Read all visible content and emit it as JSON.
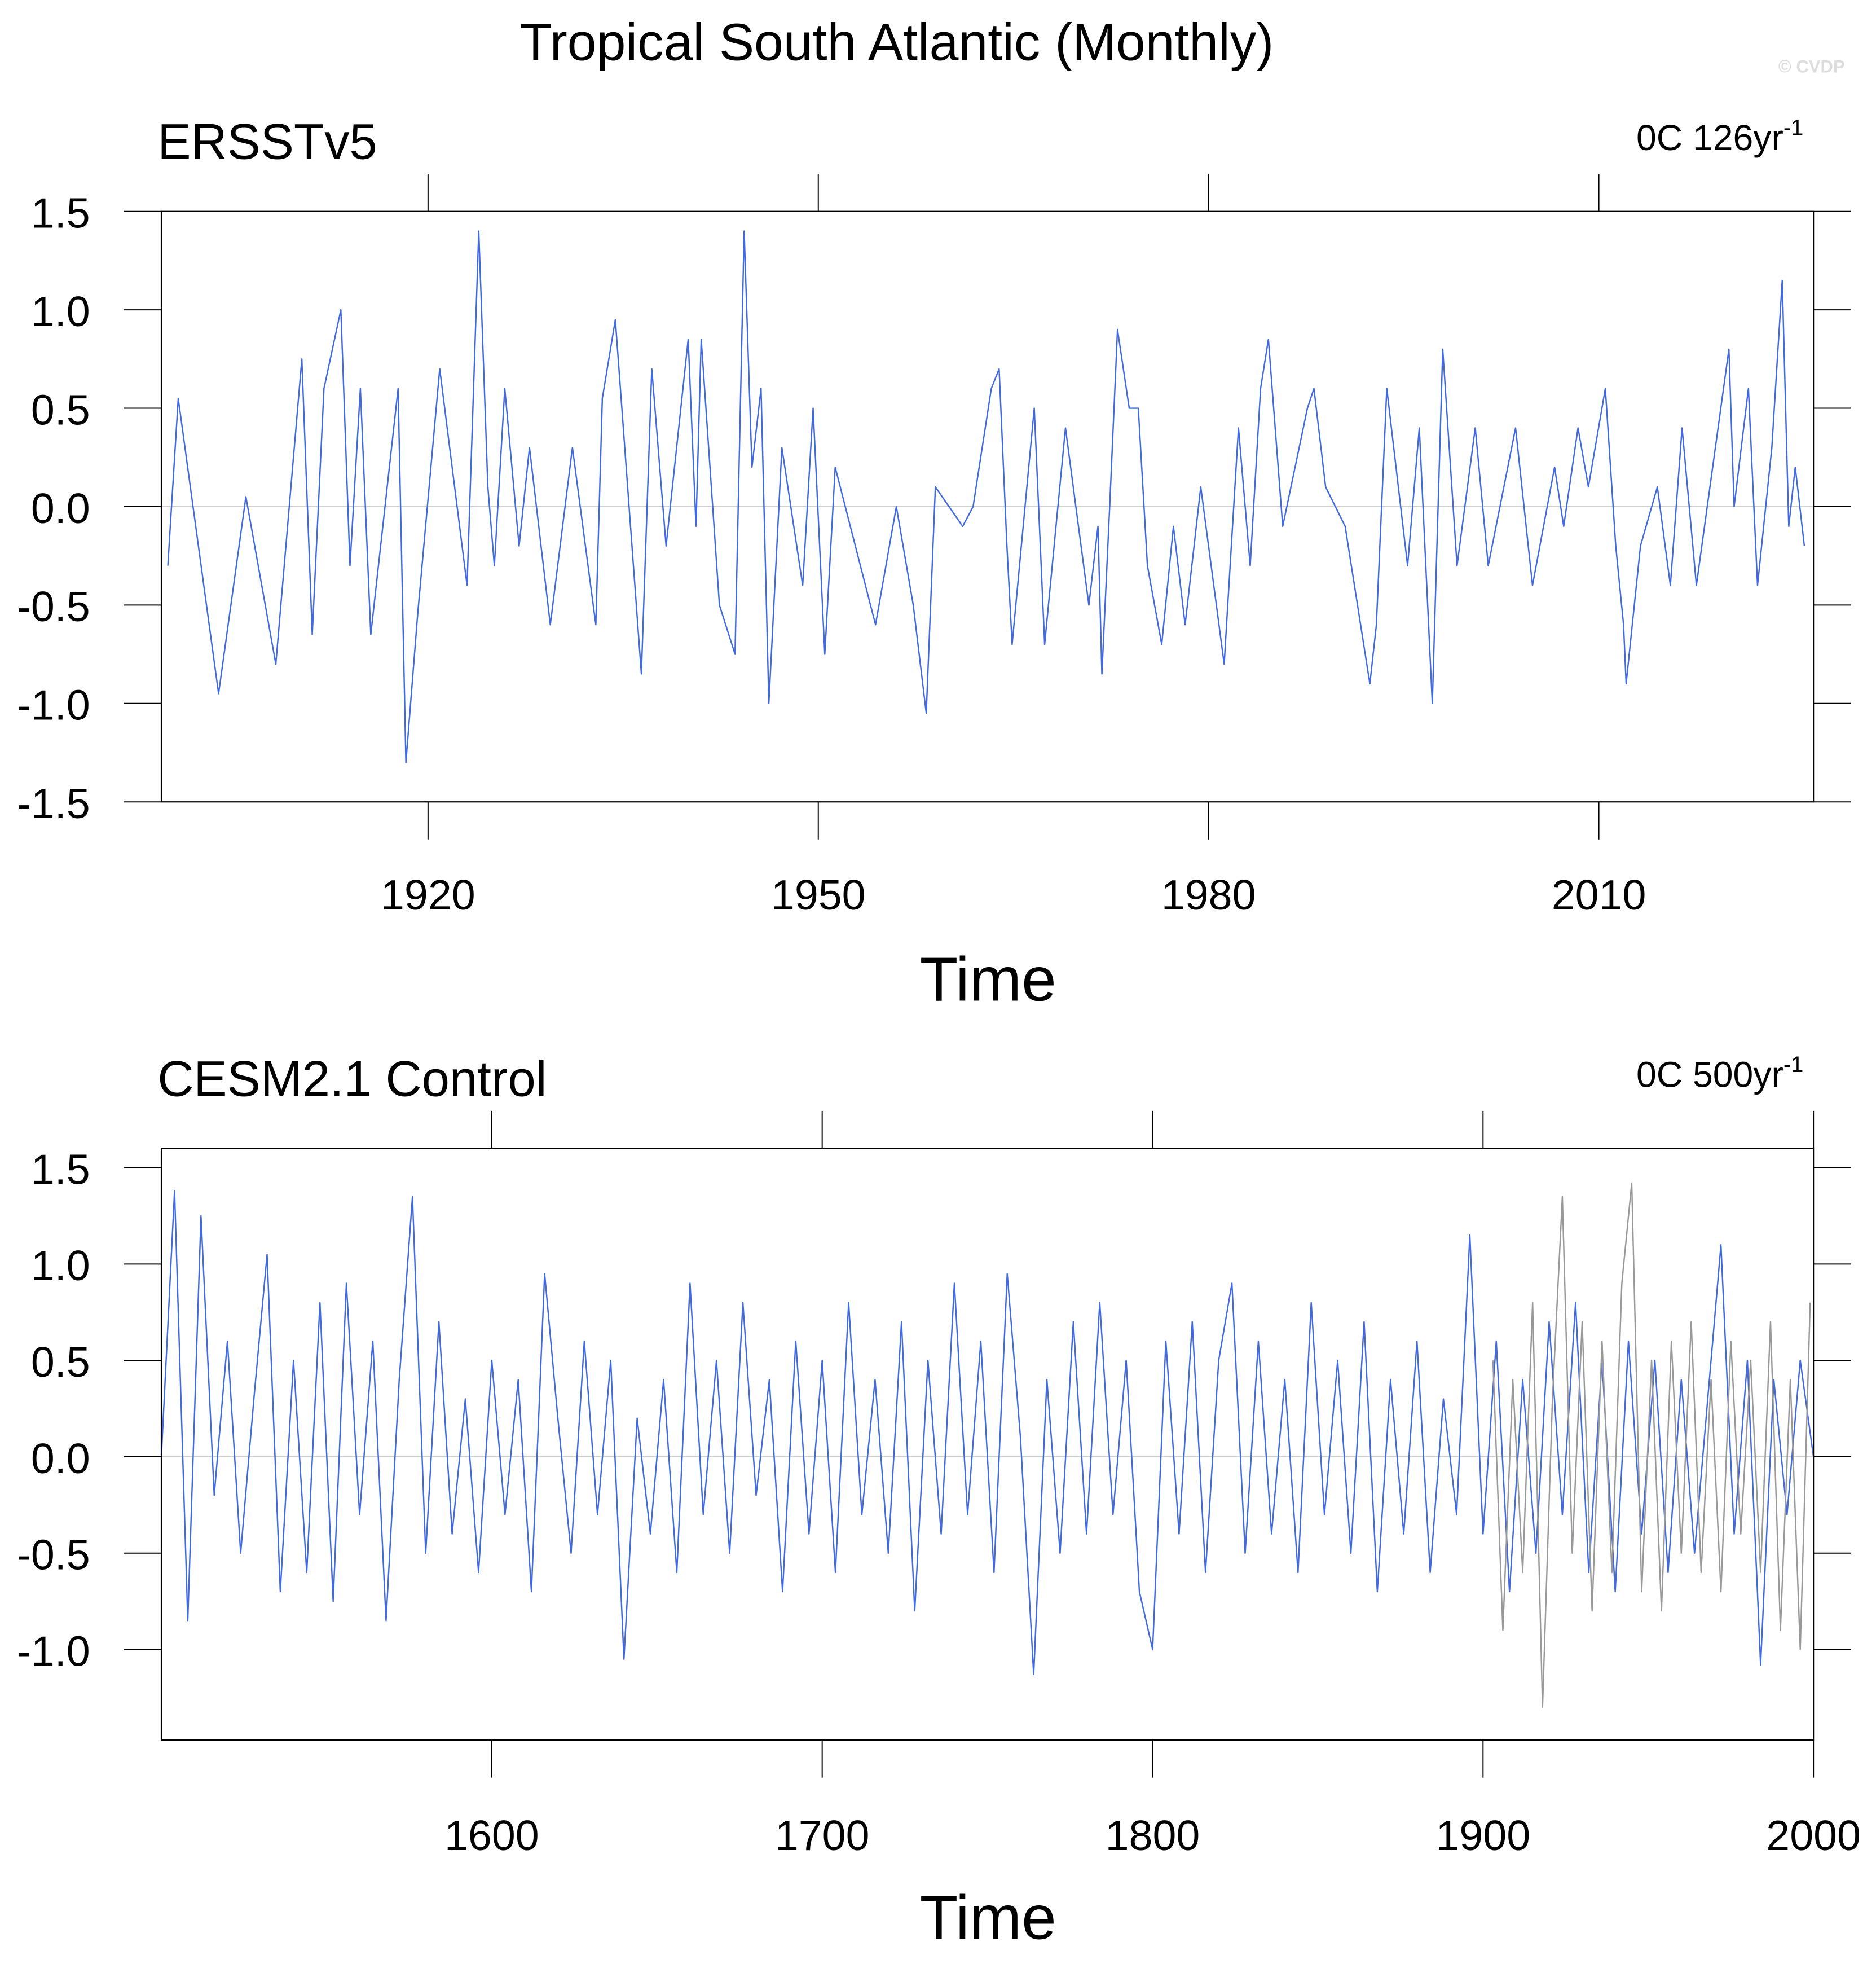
{
  "title": "Tropical South Atlantic (Monthly)",
  "credit": "© CVDP",
  "chart_data": [
    {
      "type": "line",
      "title": "ERSSTv5",
      "right_label": "0C 126yr",
      "right_label_sup": "-1",
      "xlabel": "Time",
      "xlim": [
        1899.5,
        2026.5
      ],
      "xticks": [
        1920,
        1950,
        1980,
        2010
      ],
      "ylim": [
        -1.5,
        1.5
      ],
      "yticks": [
        1.5,
        {
          "value": 1,
          "label": "1.0"
        },
        0.5,
        {
          "value": 0,
          "label": "0.0"
        },
        -0.5,
        {
          "value": -1,
          "label": "-1.0"
        },
        -1.5
      ],
      "reference_line": 0,
      "series": [
        {
          "color": "#4169e1",
          "x": [
            1900.0,
            1900.8,
            1903.9,
            1906.0,
            1908.3,
            1910.3,
            1911.1,
            1912.0,
            1913.3,
            1914.0,
            1914.8,
            1915.6,
            1917.7,
            1918.3,
            1919.2,
            1920.9,
            1923.0,
            1923.9,
            1924.6,
            1925.1,
            1925.9,
            1927.0,
            1927.8,
            1929.4,
            1931.1,
            1932.9,
            1933.4,
            1934.4,
            1936.4,
            1937.2,
            1938.3,
            1940.0,
            1940.6,
            1941.0,
            1942.4,
            1943.6,
            1944.3,
            1944.9,
            1945.6,
            1946.2,
            1947.2,
            1948.8,
            1949.6,
            1950.5,
            1951.3,
            1954.4,
            1956.0,
            1957.3,
            1958.3,
            1959.0,
            1961.1,
            1961.9,
            1963.3,
            1963.9,
            1964.5,
            1964.9,
            1966.6,
            1967.4,
            1969.0,
            1970.8,
            1971.5,
            1971.8,
            1972.4,
            1973.0,
            1973.9,
            1974.6,
            1975.3,
            1976.4,
            1977.3,
            1978.2,
            1979.4,
            1981.2,
            1982.3,
            1983.2,
            1984.0,
            1984.6,
            1985.7,
            1987.6,
            1988.1,
            1989.0,
            1990.5,
            1992.4,
            1992.9,
            1993.7,
            1995.3,
            1996.2,
            1997.2,
            1998.0,
            1999.1,
            2000.5,
            2001.5,
            2003.6,
            2004.9,
            2006.6,
            2007.3,
            2008.4,
            2009.2,
            2010.5,
            2011.3,
            2011.9,
            2012.1,
            2013.2,
            2014.5,
            2015.5,
            2016.4,
            2017.5,
            2020.0,
            2020.4,
            2021.5,
            2022.2,
            2023.3,
            2024.1,
            2024.6,
            2025.1,
            2025.8
          ],
          "values": [
            -0.3,
            0.55,
            -0.95,
            0.05,
            -0.8,
            0.75,
            -0.65,
            0.6,
            1.0,
            -0.3,
            0.6,
            -0.65,
            0.6,
            -1.3,
            -0.55,
            0.7,
            -0.4,
            1.4,
            0.1,
            -0.3,
            0.6,
            -0.2,
            0.3,
            -0.6,
            0.3,
            -0.6,
            0.55,
            0.95,
            -0.85,
            0.7,
            -0.2,
            0.85,
            -0.1,
            0.85,
            -0.5,
            -0.75,
            1.4,
            0.2,
            0.6,
            -1.0,
            0.3,
            -0.4,
            0.5,
            -0.75,
            0.2,
            -0.6,
            0.0,
            -0.5,
            -1.05,
            0.1,
            -0.1,
            0.0,
            0.6,
            0.7,
            -0.2,
            -0.7,
            0.5,
            -0.7,
            0.4,
            -0.5,
            -0.1,
            -0.85,
            0.0,
            0.9,
            0.5,
            0.5,
            -0.3,
            -0.7,
            -0.1,
            -0.6,
            0.1,
            -0.8,
            0.4,
            -0.3,
            0.6,
            0.85,
            -0.1,
            0.5,
            0.6,
            0.1,
            -0.1,
            -0.9,
            -0.6,
            0.6,
            -0.3,
            0.4,
            -1.0,
            0.8,
            -0.3,
            0.4,
            -0.3,
            0.4,
            -0.4,
            0.2,
            -0.1,
            0.4,
            0.1,
            0.6,
            -0.2,
            -0.6,
            -0.9,
            -0.2,
            0.1,
            -0.4,
            0.4,
            -0.4,
            0.8,
            0.0,
            0.6,
            -0.4,
            0.3,
            1.15,
            -0.1,
            0.2,
            -0.2
          ]
        }
      ]
    },
    {
      "type": "line",
      "title": "CESM2.1 Control",
      "right_label": "0C 500yr",
      "right_label_sup": "-1",
      "xlabel": "Time",
      "xlim": [
        1500,
        2000
      ],
      "xticks": [
        1600,
        1700,
        1800,
        1900,
        2000
      ],
      "ylim": [
        -1.47,
        1.6
      ],
      "yticks": [
        1.5,
        {
          "value": 1,
          "label": "1.0"
        },
        0.5,
        {
          "value": 0,
          "label": "0.0"
        },
        -0.5,
        {
          "value": -1,
          "label": "-1.0"
        }
      ],
      "reference_line": 0,
      "series": [
        {
          "color": "#4169e1",
          "x": [
            1500,
            1504,
            1508,
            1512,
            1516,
            1520,
            1524,
            1528,
            1532,
            1536,
            1540,
            1544,
            1548,
            1552,
            1556,
            1560,
            1564,
            1568,
            1572,
            1576,
            1580,
            1584,
            1588,
            1592,
            1596,
            1600,
            1604,
            1608,
            1612,
            1616,
            1620,
            1624,
            1628,
            1632,
            1636,
            1640,
            1644,
            1648,
            1652,
            1656,
            1660,
            1664,
            1668,
            1672,
            1676,
            1680,
            1684,
            1688,
            1692,
            1696,
            1700,
            1704,
            1708,
            1712,
            1716,
            1720,
            1724,
            1728,
            1732,
            1736,
            1740,
            1744,
            1748,
            1752,
            1756,
            1760,
            1764,
            1768,
            1772,
            1776,
            1780,
            1784,
            1788,
            1792,
            1796,
            1800,
            1804,
            1808,
            1812,
            1816,
            1820,
            1824,
            1828,
            1832,
            1836,
            1840,
            1844,
            1848,
            1852,
            1856,
            1860,
            1864,
            1868,
            1872,
            1876,
            1880,
            1884,
            1888,
            1892,
            1896,
            1900,
            1904,
            1908,
            1912,
            1916,
            1920,
            1924,
            1928,
            1932,
            1936,
            1940,
            1944,
            1948,
            1952,
            1956,
            1960,
            1964,
            1968,
            1972,
            1976,
            1980,
            1984,
            1988,
            1992,
            1996,
            2000
          ],
          "values": [
            0.0,
            1.38,
            -0.85,
            1.25,
            -0.2,
            0.6,
            -0.5,
            0.3,
            1.05,
            -0.7,
            0.5,
            -0.6,
            0.8,
            -0.75,
            0.9,
            -0.3,
            0.6,
            -0.85,
            0.4,
            1.35,
            -0.5,
            0.7,
            -0.4,
            0.3,
            -0.6,
            0.5,
            -0.3,
            0.4,
            -0.7,
            0.95,
            0.2,
            -0.5,
            0.6,
            -0.3,
            0.5,
            -1.05,
            0.2,
            -0.4,
            0.4,
            -0.6,
            0.9,
            -0.3,
            0.5,
            -0.5,
            0.8,
            -0.2,
            0.4,
            -0.7,
            0.6,
            -0.4,
            0.5,
            -0.6,
            0.8,
            -0.3,
            0.4,
            -0.5,
            0.7,
            -0.8,
            0.5,
            -0.4,
            0.9,
            -0.3,
            0.6,
            -0.6,
            0.95,
            0.1,
            -1.13,
            0.4,
            -0.5,
            0.7,
            -0.4,
            0.8,
            -0.3,
            0.5,
            -0.7,
            -1.0,
            0.6,
            -0.4,
            0.7,
            -0.6,
            0.5,
            0.9,
            -0.5,
            0.6,
            -0.4,
            0.4,
            -0.6,
            0.8,
            -0.3,
            0.5,
            -0.5,
            0.7,
            -0.7,
            0.4,
            -0.4,
            0.6,
            -0.6,
            0.3,
            -0.3,
            1.15,
            -0.4,
            0.6,
            -0.7,
            0.4,
            -0.5,
            0.7,
            -0.3,
            0.8,
            -0.6,
            0.5,
            -0.7,
            0.6,
            -0.4,
            0.5,
            -0.6,
            0.4,
            -0.5,
            0.3,
            1.1,
            -0.4,
            0.5,
            -1.08,
            0.4,
            -0.3,
            0.5,
            0.0
          ]
        },
        {
          "color": "#999999",
          "x": [
            1903,
            1906,
            1909,
            1912,
            1915,
            1918,
            1921,
            1924,
            1927,
            1930,
            1933,
            1936,
            1939,
            1942,
            1945,
            1948,
            1951,
            1954,
            1957,
            1960,
            1963,
            1966,
            1969,
            1972,
            1975,
            1978,
            1981,
            1984,
            1987,
            1990,
            1993,
            1996,
            1999
          ],
          "values": [
            0.5,
            -0.9,
            0.4,
            -0.6,
            0.8,
            -1.3,
            0.3,
            1.35,
            -0.5,
            0.7,
            -0.8,
            0.6,
            -0.6,
            0.9,
            1.42,
            -0.7,
            0.5,
            -0.8,
            0.6,
            -0.5,
            0.7,
            -0.6,
            0.4,
            -0.7,
            0.6,
            -0.4,
            0.5,
            -0.6,
            0.7,
            -0.9,
            0.4,
            -1.0,
            0.8
          ]
        }
      ]
    }
  ]
}
